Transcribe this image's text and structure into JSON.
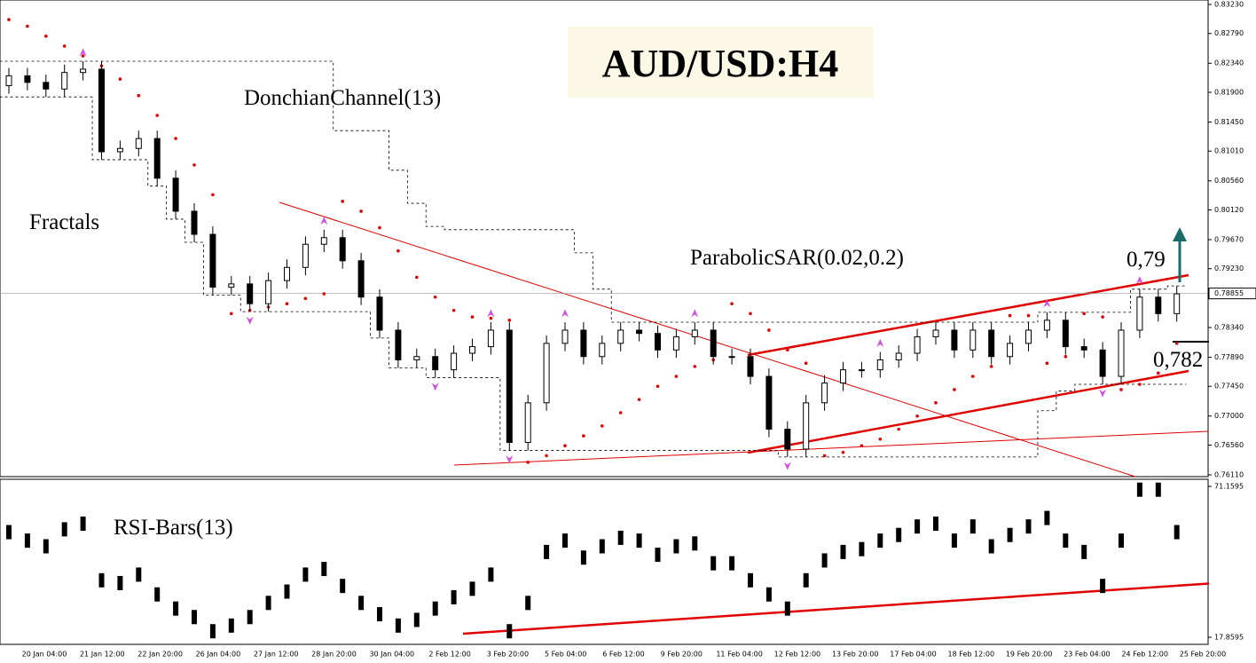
{
  "chart_data": {
    "type": "candlestick",
    "title": "AUD/USD:H4",
    "annotations": [
      "DonchianChannel(13)",
      "Fractals",
      "ParabolicSAR(0.02,0.2)",
      "0,79",
      "0,782"
    ],
    "price_label": {
      "value": 0.78855,
      "label": "0.78855"
    },
    "open": [
      0.82,
      0.8215,
      0.8205,
      0.8195,
      0.822,
      0.8225,
      0.81,
      0.8105,
      0.812,
      0.806,
      0.801,
      0.7975,
      0.7895,
      0.79,
      0.787,
      0.7905,
      0.7925,
      0.796,
      0.797,
      0.7935,
      0.788,
      0.783,
      0.7785,
      0.779,
      0.777,
      0.7795,
      0.7805,
      0.783,
      0.766,
      0.772,
      0.781,
      0.783,
      0.779,
      0.781,
      0.783,
      0.7825,
      0.78,
      0.782,
      0.783,
      0.779,
      0.779,
      0.776,
      0.768,
      0.765,
      0.772,
      0.775,
      0.777,
      0.777,
      0.7785,
      0.7795,
      0.782,
      0.783,
      0.78,
      0.783,
      0.779,
      0.781,
      0.783,
      0.7845,
      0.7805,
      0.78,
      0.776,
      0.783,
      0.788,
      0.7855
    ],
    "high": [
      0.8227,
      0.8227,
      0.8217,
      0.8232,
      0.8237,
      0.8237,
      0.8117,
      0.8132,
      0.8132,
      0.8072,
      0.8022,
      0.7987,
      0.7912,
      0.7912,
      0.7917,
      0.7937,
      0.7972,
      0.7982,
      0.7982,
      0.7947,
      0.7892,
      0.7842,
      0.7802,
      0.7802,
      0.7807,
      0.7817,
      0.7842,
      0.7842,
      0.7732,
      0.7822,
      0.7842,
      0.7842,
      0.7822,
      0.7842,
      0.7842,
      0.7837,
      0.7832,
      0.7842,
      0.7842,
      0.7802,
      0.7802,
      0.7772,
      0.7692,
      0.7732,
      0.7762,
      0.7782,
      0.7782,
      0.7797,
      0.7807,
      0.7832,
      0.7842,
      0.7842,
      0.7842,
      0.7842,
      0.7822,
      0.7842,
      0.7857,
      0.7857,
      0.7817,
      0.7812,
      0.7842,
      0.7892,
      0.7892,
      0.7897
    ],
    "low": [
      0.8188,
      0.8193,
      0.8183,
      0.8183,
      0.8208,
      0.8088,
      0.8088,
      0.8093,
      0.8048,
      0.7998,
      0.7963,
      0.7883,
      0.7883,
      0.7858,
      0.7858,
      0.7893,
      0.7913,
      0.7948,
      0.7923,
      0.7868,
      0.7818,
      0.7773,
      0.7773,
      0.7758,
      0.7758,
      0.7783,
      0.7793,
      0.7648,
      0.7648,
      0.7708,
      0.7798,
      0.7778,
      0.7778,
      0.7798,
      0.7813,
      0.7788,
      0.7788,
      0.7808,
      0.7778,
      0.7778,
      0.7748,
      0.7668,
      0.7638,
      0.7638,
      0.7708,
      0.7738,
      0.7758,
      0.7758,
      0.7773,
      0.7783,
      0.7808,
      0.7788,
      0.7788,
      0.7778,
      0.7778,
      0.7798,
      0.7818,
      0.7793,
      0.7788,
      0.7748,
      0.7748,
      0.7818,
      0.7843,
      0.7843
    ],
    "close": [
      0.8215,
      0.8205,
      0.8195,
      0.822,
      0.8225,
      0.81,
      0.8105,
      0.812,
      0.806,
      0.801,
      0.7975,
      0.7895,
      0.79,
      0.787,
      0.7905,
      0.7925,
      0.796,
      0.797,
      0.7935,
      0.788,
      0.783,
      0.7785,
      0.779,
      0.777,
      0.7795,
      0.7805,
      0.783,
      0.766,
      0.772,
      0.781,
      0.783,
      0.779,
      0.781,
      0.783,
      0.7825,
      0.78,
      0.782,
      0.783,
      0.779,
      0.779,
      0.776,
      0.768,
      0.765,
      0.772,
      0.775,
      0.777,
      0.777,
      0.7785,
      0.7795,
      0.782,
      0.783,
      0.78,
      0.783,
      0.779,
      0.781,
      0.783,
      0.7845,
      0.7805,
      0.78,
      0.776,
      0.783,
      0.788,
      0.7855,
      0.7885
    ],
    "sar": [
      0.83,
      0.829,
      0.8275,
      0.826,
      0.8245,
      0.823,
      0.821,
      0.8185,
      0.8155,
      0.812,
      0.808,
      0.8035,
      0.7855,
      0.786,
      0.7865,
      0.787,
      0.7878,
      0.7885,
      0.8025,
      0.801,
      0.7985,
      0.795,
      0.791,
      0.788,
      0.786,
      0.785,
      0.7848,
      0.7845,
      0.763,
      0.764,
      0.7655,
      0.767,
      0.7685,
      0.7705,
      0.7725,
      0.7745,
      0.776,
      0.7775,
      0.7785,
      0.787,
      0.7855,
      0.783,
      0.78,
      0.778,
      0.764,
      0.7645,
      0.7655,
      0.7665,
      0.768,
      0.77,
      0.772,
      0.774,
      0.776,
      0.7775,
      0.7852,
      0.7852,
      0.778,
      0.779,
      0.7855,
      0.785,
      0.774,
      0.7748,
      0.7765,
      0.781
    ],
    "donchian_upper": [
      0.8237,
      0.8237,
      0.8237,
      0.8237,
      0.8237,
      0.8237,
      0.8237,
      0.8237,
      0.8237,
      0.8237,
      0.8237,
      0.8237,
      0.8237,
      0.8237,
      0.8237,
      0.8237,
      0.8237,
      0.8237,
      0.8132,
      0.8132,
      0.8132,
      0.8072,
      0.8022,
      0.7987,
      0.7982,
      0.7982,
      0.7982,
      0.7982,
      0.7982,
      0.7982,
      0.7982,
      0.7947,
      0.7892,
      0.7842,
      0.7842,
      0.7842,
      0.7842,
      0.7842,
      0.7842,
      0.7842,
      0.7842,
      0.7842,
      0.7842,
      0.7842,
      0.7842,
      0.7842,
      0.7842,
      0.7842,
      0.7842,
      0.7842,
      0.7842,
      0.7842,
      0.7842,
      0.7842,
      0.7842,
      0.7842,
      0.7857,
      0.7857,
      0.7857,
      0.7857,
      0.7857,
      0.7892,
      0.7892,
      0.7897
    ],
    "donchian_lower": [
      0.8183,
      0.8183,
      0.8183,
      0.8183,
      0.8183,
      0.8088,
      0.8088,
      0.8088,
      0.8048,
      0.7998,
      0.7963,
      0.7883,
      0.7883,
      0.7858,
      0.7858,
      0.7858,
      0.7858,
      0.7858,
      0.7858,
      0.7858,
      0.7818,
      0.7773,
      0.7773,
      0.7758,
      0.7758,
      0.7758,
      0.7758,
      0.7648,
      0.7648,
      0.7648,
      0.7648,
      0.7648,
      0.7648,
      0.7648,
      0.7648,
      0.7648,
      0.7648,
      0.7648,
      0.7648,
      0.7648,
      0.7648,
      0.7648,
      0.7638,
      0.7638,
      0.7638,
      0.7638,
      0.7638,
      0.7638,
      0.7638,
      0.7638,
      0.7638,
      0.7638,
      0.7638,
      0.7638,
      0.7638,
      0.7638,
      0.7708,
      0.7738,
      0.7748,
      0.7748,
      0.7748,
      0.7748,
      0.7748,
      0.7748
    ],
    "fractals_up": [
      null,
      null,
      null,
      null,
      0.825,
      null,
      null,
      null,
      null,
      null,
      null,
      null,
      null,
      null,
      null,
      null,
      null,
      0.7995,
      null,
      null,
      null,
      null,
      null,
      null,
      null,
      null,
      0.7855,
      null,
      null,
      null,
      0.7855,
      null,
      null,
      null,
      null,
      null,
      null,
      0.7855,
      null,
      null,
      null,
      null,
      null,
      null,
      null,
      null,
      null,
      0.781,
      null,
      null,
      null,
      null,
      null,
      null,
      null,
      null,
      0.787,
      null,
      null,
      null,
      null,
      0.7905,
      null,
      null
    ],
    "fractals_down": [
      null,
      null,
      null,
      null,
      null,
      null,
      null,
      null,
      null,
      null,
      null,
      null,
      null,
      0.7845,
      null,
      null,
      null,
      null,
      null,
      null,
      null,
      null,
      null,
      0.7745,
      null,
      null,
      null,
      0.7635,
      null,
      null,
      null,
      null,
      null,
      null,
      null,
      null,
      null,
      null,
      null,
      null,
      null,
      null,
      0.7625,
      null,
      null,
      null,
      null,
      null,
      null,
      null,
      null,
      null,
      null,
      null,
      null,
      null,
      null,
      null,
      null,
      0.7735,
      null,
      null,
      null,
      null
    ],
    "ylim": [
      0.76083,
      0.83297
    ],
    "yticks": [
      {
        "value": 0.8323,
        "label": "0.83230"
      },
      {
        "value": 0.8279,
        "label": "0.82790"
      },
      {
        "value": 0.8234,
        "label": "0.82340"
      },
      {
        "value": 0.819,
        "label": "0.81900"
      },
      {
        "value": 0.8145,
        "label": "0.81450"
      },
      {
        "value": 0.8101,
        "label": "0.81010"
      },
      {
        "value": 0.8056,
        "label": "0.80560"
      },
      {
        "value": 0.8012,
        "label": "0.80120"
      },
      {
        "value": 0.7967,
        "label": "0.79670"
      },
      {
        "value": 0.7923,
        "label": "0.79230"
      },
      {
        "value": 0.7834,
        "label": "0.78340"
      },
      {
        "value": 0.7789,
        "label": "0.77890"
      },
      {
        "value": 0.7745,
        "label": "0.77450"
      },
      {
        "value": 0.77,
        "label": "0.77000"
      },
      {
        "value": 0.7656,
        "label": "0.76560"
      },
      {
        "value": 0.7611,
        "label": "0.76110"
      }
    ],
    "x_labels": [
      "20 Jan 04:00",
      "21 Jan 12:00",
      "22 Jan 20:00",
      "26 Jan 04:00",
      "27 Jan 12:00",
      "28 Jan 20:00",
      "30 Jan 04:00",
      "2 Feb 12:00",
      "3 Feb 20:00",
      "5 Feb 04:00",
      "6 Feb 12:00",
      "9 Feb 20:00",
      "11 Feb 04:00",
      "12 Feb 12:00",
      "13 Feb 20:00",
      "17 Feb 04:00",
      "18 Feb 12:00",
      "19 Feb 20:00",
      "23 Feb 04:00",
      "24 Feb 12:00",
      "25 Feb 20:00"
    ],
    "rsi": {
      "title": "RSI-Bars(13)",
      "values": [
        55,
        52,
        50,
        56,
        58,
        38,
        37,
        40,
        33,
        28,
        25,
        20,
        22,
        25,
        30,
        34,
        40,
        42,
        36,
        30,
        26,
        22,
        24,
        28,
        32,
        35,
        40,
        20,
        30,
        48,
        52,
        46,
        50,
        53,
        52,
        47,
        50,
        51,
        44,
        44,
        38,
        33,
        28,
        38,
        45,
        48,
        49,
        52,
        54,
        57,
        58,
        52,
        57,
        50,
        54,
        57,
        60,
        52,
        48,
        36,
        52,
        70,
        70,
        55
      ],
      "ylim": [
        15.36,
        73.67
      ],
      "yticks": [
        71.1595,
        17.8595
      ]
    }
  }
}
